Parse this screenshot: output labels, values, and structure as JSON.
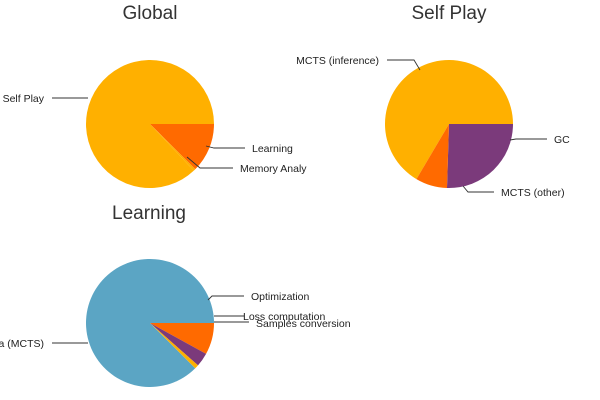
{
  "chart_data": [
    {
      "type": "pie",
      "title": "Global",
      "slices": [
        {
          "label": "Self Play",
          "value": 87.0,
          "color": "#ffb000"
        },
        {
          "label": "Learning",
          "value": 12.5,
          "color": "#ff6a00"
        },
        {
          "label": "Memory Analy",
          "value": 0.5,
          "color": "#ffb000"
        }
      ]
    },
    {
      "type": "pie",
      "title": "Self Play",
      "slices": [
        {
          "label": "MCTS (inference)",
          "value": 66.5,
          "color": "#ffb000"
        },
        {
          "label": "MCTS (other)",
          "value": 25.5,
          "color": "#7b3a7b"
        },
        {
          "label": "GC",
          "value": 8.0,
          "color": "#ff6a00"
        }
      ]
    },
    {
      "type": "pie",
      "title": "Learning",
      "slices": [
        {
          "label": "Get data (MCTS)",
          "value": 87.5,
          "color": "#5ba5c4"
        },
        {
          "label": "Optimization",
          "value": 8.0,
          "color": "#ff6a00"
        },
        {
          "label": "Loss computation",
          "value": 3.5,
          "color": "#7b3a7b"
        },
        {
          "label": "Samples conversion",
          "value": 1.0,
          "color": "#ffb000"
        }
      ]
    }
  ]
}
